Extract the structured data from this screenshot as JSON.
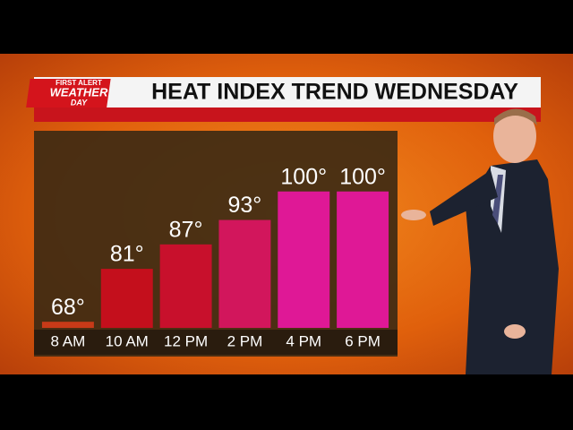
{
  "logo": {
    "line1": "FIRST ALERT",
    "line2": "WEATHER",
    "line3": "DAY"
  },
  "chart_data": {
    "type": "bar",
    "title": "HEAT INDEX TREND WEDNESDAY",
    "categories": [
      "8 AM",
      "10 AM",
      "12 PM",
      "2 PM",
      "4 PM",
      "6 PM"
    ],
    "values": [
      68,
      81,
      87,
      93,
      100,
      100
    ],
    "value_labels": [
      "68°",
      "81°",
      "87°",
      "93°",
      "100°",
      "100°"
    ],
    "colors": [
      "#c83a18",
      "#c40f1c",
      "#c8102c",
      "#d2165c",
      "#df1896",
      "#df1896"
    ],
    "ylim": [
      66.5,
      105
    ]
  }
}
